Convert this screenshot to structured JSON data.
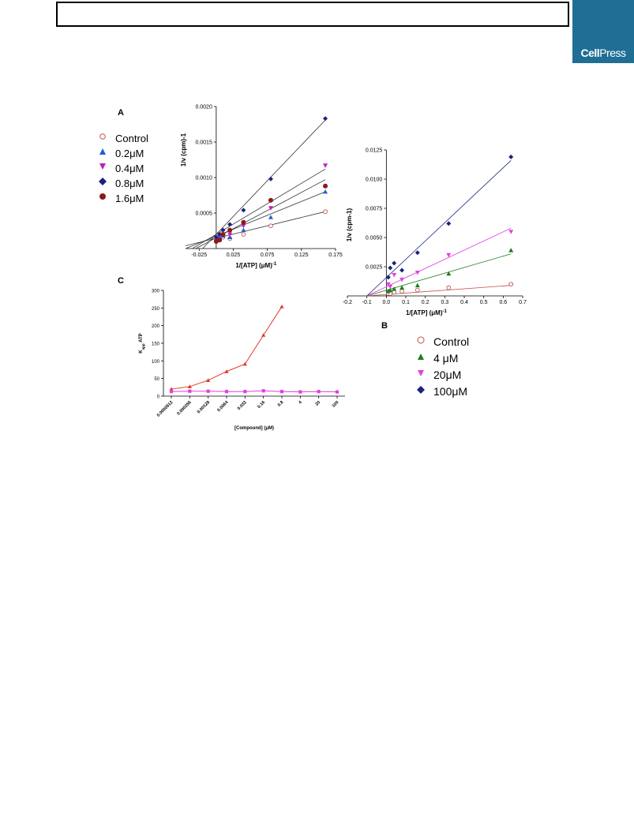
{
  "header": {
    "logo_text_bold": "Cell",
    "logo_text_rest": "Press"
  },
  "panels": {
    "a_label": "A",
    "b_label": "B",
    "c_label": "C"
  },
  "colors": {
    "control": "#c0504d",
    "blue_triangle": "#1f5fd6",
    "magenta": "#c21dbf",
    "navy": "#1a237e",
    "darkred": "#8b1a1a",
    "green": "#1e7d1e",
    "red_line": "#e03a2a",
    "pink_line": "#e040e0",
    "logo_bg": "#1f6e95"
  },
  "chart_data": [
    {
      "panel": "A",
      "type": "scatter",
      "xlabel": "1/[ATP] (μM)-1",
      "ylabel": "1/v (cpm)-1",
      "xlim": [
        -0.045,
        0.175
      ],
      "ylim": [
        0,
        0.002
      ],
      "xticks": [
        "-0.025",
        "0.025",
        "0.075",
        "0.125",
        "0.175"
      ],
      "yticks": [
        "0.0005",
        "0.0010",
        "0.0015",
        "0.0020"
      ],
      "x": [
        0.0,
        0.005,
        0.01,
        0.02,
        0.04,
        0.08,
        0.16
      ],
      "series": [
        {
          "name": "Control",
          "marker": "open-circle",
          "color": "#c0504d",
          "y": [
            0.00012,
            0.00014,
            0.00016,
            0.00014,
            0.0002,
            0.00032,
            0.00052
          ],
          "fit": {
            "x0": -0.045,
            "y0": 4e-05,
            "x1": 0.16,
            "y1": 0.00052
          }
        },
        {
          "name": "0.2μM",
          "marker": "triangle-up",
          "color": "#1f5fd6",
          "y": [
            0.00013,
            0.00016,
            0.00018,
            0.00016,
            0.00026,
            0.00044,
            0.0008
          ],
          "fit": {
            "x0": -0.045,
            "y0": 0.0,
            "x1": 0.16,
            "y1": 0.0008
          }
        },
        {
          "name": "0.4μM",
          "marker": "triangle-down",
          "color": "#c21dbf",
          "y": [
            0.00014,
            0.00018,
            0.0002,
            0.0002,
            0.00032,
            0.00057,
            0.00117
          ],
          "fit": {
            "x0": -0.035,
            "y0": 0.0,
            "x1": 0.16,
            "y1": 0.00112
          }
        },
        {
          "name": "0.8μM",
          "marker": "diamond",
          "color": "#1a237e",
          "y": [
            0.00016,
            0.0002,
            0.00026,
            0.00034,
            0.00054,
            0.00098,
            0.00183
          ],
          "fit": {
            "x0": -0.02,
            "y0": 0.0,
            "x1": 0.16,
            "y1": 0.00181
          }
        },
        {
          "name": "1.6μM",
          "marker": "circle",
          "color": "#8b1a1a",
          "y": [
            0.0001,
            0.00012,
            0.0002,
            0.00026,
            0.00037,
            0.00068,
            0.00088
          ],
          "fit": {
            "x0": -0.03,
            "y0": 0.0,
            "x1": 0.16,
            "y1": 0.00097
          }
        }
      ]
    },
    {
      "panel": "B",
      "type": "scatter",
      "xlabel": "1/[ATP] (μM)-1",
      "ylabel": "1/v (cpm-1)",
      "xlim": [
        -0.2,
        0.7
      ],
      "ylim": [
        0,
        0.0125
      ],
      "xticks": [
        "-0.2",
        "-0.1",
        "0.0",
        "0.1",
        "0.2",
        "0.3",
        "0.4",
        "0.5",
        "0.6",
        "0.7"
      ],
      "yticks": [
        "0.0025",
        "0.0050",
        "0.0075",
        "0.0100",
        "0.0125"
      ],
      "x": [
        0.01,
        0.02,
        0.04,
        0.08,
        0.16,
        0.32,
        0.64
      ],
      "series": [
        {
          "name": "Control",
          "marker": "open-circle",
          "color": "#c0504d",
          "y": [
            0.0002,
            0.0002,
            0.0003,
            0.0004,
            0.0005,
            0.0007,
            0.001
          ],
          "fit": {
            "x0": -0.1,
            "y0": 0.0,
            "x1": 0.64,
            "y1": 0.0009
          }
        },
        {
          "name": "4 μM",
          "marker": "triangle-up",
          "color": "#1e7d1e",
          "y": [
            0.0004,
            0.0005,
            0.0006,
            0.0007,
            0.0009,
            0.0019,
            0.0039
          ],
          "fit": {
            "x0": -0.1,
            "y0": 0.0,
            "x1": 0.64,
            "y1": 0.0036
          }
        },
        {
          "name": "20μM",
          "marker": "triangle-down",
          "color": "#e040e0",
          "y": [
            0.001,
            0.0008,
            0.0018,
            0.0014,
            0.002,
            0.0035,
            0.0055
          ],
          "fit": {
            "x0": -0.1,
            "y0": 0.0,
            "x1": 0.64,
            "y1": 0.0058
          }
        },
        {
          "name": "100μM",
          "marker": "diamond",
          "color": "#1a237e",
          "y": [
            0.0016,
            0.0024,
            0.0028,
            0.0022,
            0.0037,
            0.0062,
            0.0119
          ],
          "fit": {
            "x0": -0.1,
            "y0": 0.0,
            "x1": 0.64,
            "y1": 0.0116
          }
        }
      ]
    },
    {
      "panel": "C",
      "type": "line",
      "xlabel": "[Compound] (μM)",
      "ylabel": "Kapp ATP",
      "ylim": [
        0,
        300
      ],
      "yticks": [
        "0",
        "50",
        "100",
        "150",
        "200",
        "250",
        "300"
      ],
      "categories": [
        "0.0000512",
        "0.000256",
        "0.00128",
        "0.0064",
        "0.032",
        "0.16",
        "0.8",
        "4",
        "20",
        "100"
      ],
      "series": [
        {
          "color": "#e03a2a",
          "marker": "triangle-up",
          "values": [
            20,
            27,
            45,
            70,
            91,
            173,
            254,
            null,
            null,
            null
          ]
        },
        {
          "color": "#e040e0",
          "marker": "square",
          "values": [
            13,
            14,
            14,
            13,
            13,
            15,
            13,
            12,
            13,
            12
          ]
        }
      ]
    }
  ]
}
